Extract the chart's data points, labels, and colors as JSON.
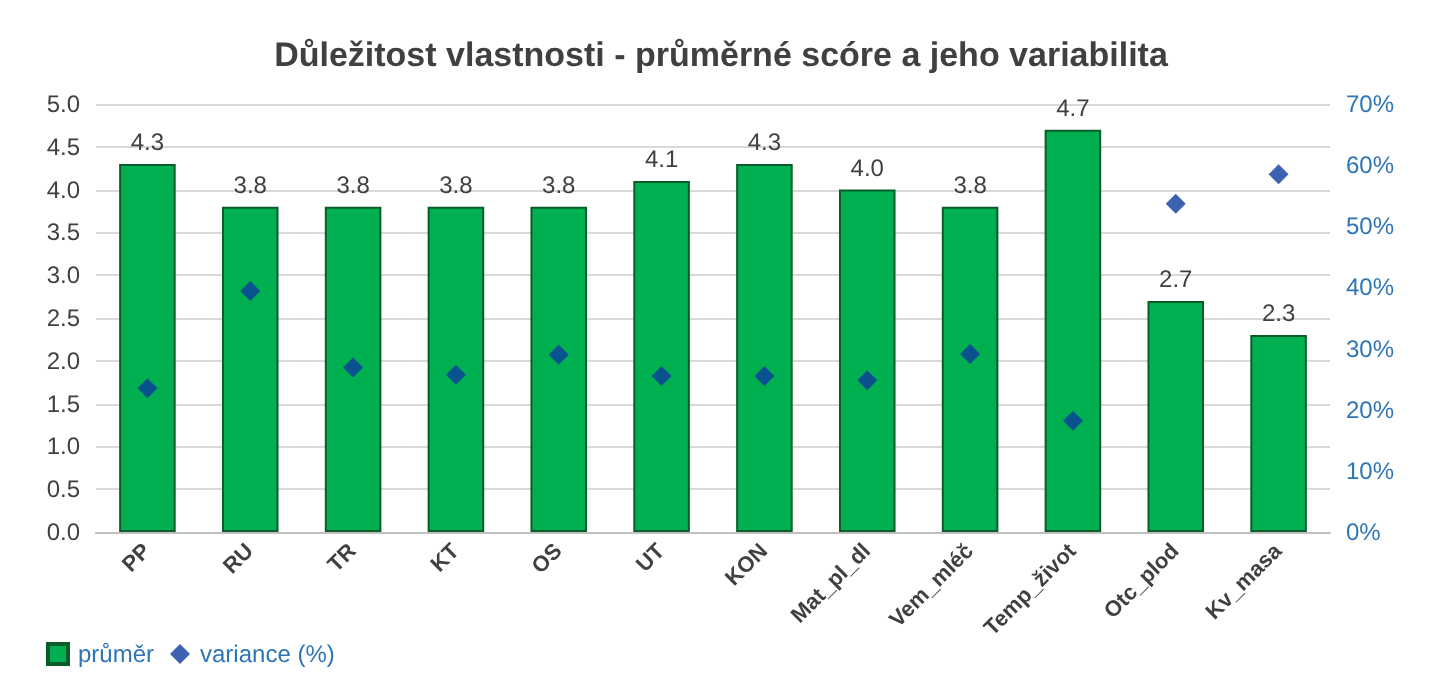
{
  "chart_data": {
    "type": "bar",
    "title": "Důležitost vlastnosti - průměrné scóre a jeho variabilita",
    "categories": [
      "PP",
      "RU",
      "TR",
      "KT",
      "OS",
      "UT",
      "KON",
      "Mat_pl_dl",
      "Vem_mléč",
      "Temp_život",
      "Otc_plod",
      "Kv_masa"
    ],
    "series": [
      {
        "name": "průměr",
        "color": "#00b050",
        "values": [
          4.3,
          3.8,
          3.8,
          3.8,
          3.8,
          4.1,
          4.3,
          4.0,
          3.8,
          4.7,
          2.7,
          2.3
        ],
        "value_labels": [
          "4.3",
          "3.8",
          "3.8",
          "3.8",
          "3.8",
          "4.1",
          "4.3",
          "4.0",
          "3.8",
          "4.7",
          "2.7",
          "2.3"
        ]
      },
      {
        "name": "variance (%)",
        "type": "scatter",
        "axis": "y2",
        "color": "#0d3b9e",
        "marker": "diamond",
        "values": [
          23.5,
          39.4,
          26.9,
          25.7,
          29,
          25.5,
          25.5,
          24.8,
          29.1,
          18.2,
          53.7,
          58.5
        ]
      }
    ],
    "ylim": [
      0,
      5
    ],
    "yticks": [
      {
        "value": 0,
        "label": "0.0"
      },
      {
        "value": 0.5,
        "label": "0.5"
      },
      {
        "value": 1,
        "label": "1.0"
      },
      {
        "value": 1.5,
        "label": "1.5"
      },
      {
        "value": 2,
        "label": "2.0"
      },
      {
        "value": 2.5,
        "label": "2.5"
      },
      {
        "value": 3,
        "label": "3.0"
      },
      {
        "value": 3.5,
        "label": "3.5"
      },
      {
        "value": 4,
        "label": "4.0"
      },
      {
        "value": 4.5,
        "label": "4.5"
      },
      {
        "value": 5,
        "label": "5.0"
      }
    ],
    "y2lim": [
      0,
      70
    ],
    "y2ticks": [
      {
        "value": 0,
        "label": "0%"
      },
      {
        "value": 10,
        "label": "10%"
      },
      {
        "value": 20,
        "label": "20%"
      },
      {
        "value": 30,
        "label": "30%"
      },
      {
        "value": 40,
        "label": "40%"
      },
      {
        "value": 50,
        "label": "50%"
      },
      {
        "value": 60,
        "label": "60%"
      },
      {
        "value": 70,
        "label": "70%"
      }
    ],
    "grid": "y",
    "legend": "bottom left"
  }
}
